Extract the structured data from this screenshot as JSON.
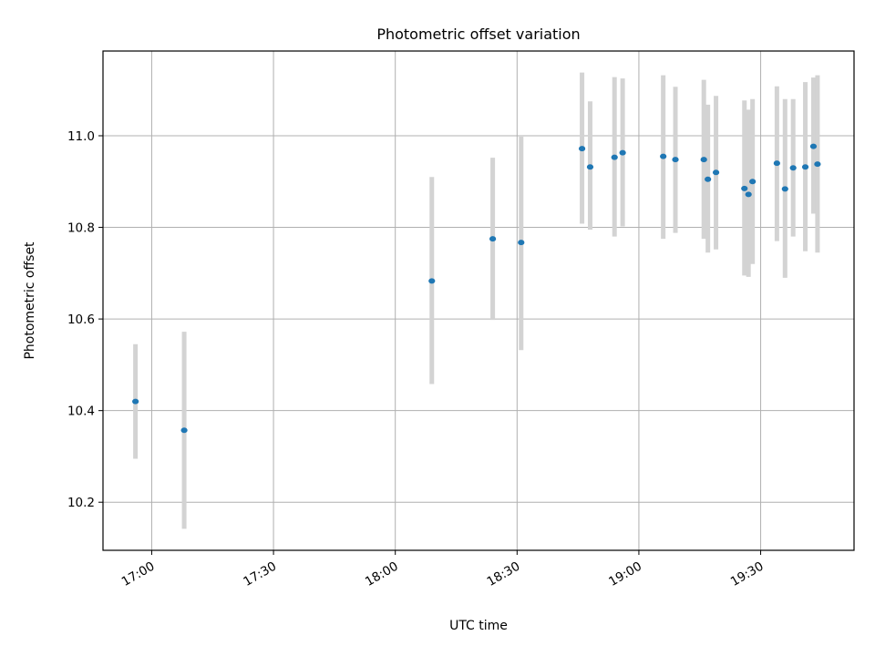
{
  "chart_data": {
    "type": "scatter",
    "title": "Photometric offset variation",
    "xlabel": "UTC time",
    "ylabel": "Photometric offset",
    "xlim": [
      "16:48",
      "19:53"
    ],
    "ylim": [
      10.095,
      11.185
    ],
    "xticks": [
      "17:00",
      "17:30",
      "18:00",
      "18:30",
      "19:00",
      "19:30"
    ],
    "yticks": [
      "10.2",
      "10.4",
      "10.6",
      "10.8",
      "11.0"
    ],
    "grid": true,
    "marker_color": "#1f77b4",
    "errorbar_color": "#d3d3d3",
    "points": [
      {
        "x": "16:56",
        "y": 10.42,
        "ylow": 10.295,
        "yhigh": 10.545
      },
      {
        "x": "17:08",
        "y": 10.357,
        "ylow": 10.142,
        "yhigh": 10.572
      },
      {
        "x": "18:09",
        "y": 10.683,
        "ylow": 10.458,
        "yhigh": 10.91
      },
      {
        "x": "18:24",
        "y": 10.775,
        "ylow": 10.598,
        "yhigh": 10.952
      },
      {
        "x": "18:31",
        "y": 10.767,
        "ylow": 10.532,
        "yhigh": 10.998
      },
      {
        "x": "18:46",
        "y": 10.972,
        "ylow": 10.808,
        "yhigh": 11.138
      },
      {
        "x": "18:48",
        "y": 10.932,
        "ylow": 10.795,
        "yhigh": 11.075
      },
      {
        "x": "18:54",
        "y": 10.953,
        "ylow": 10.78,
        "yhigh": 11.128
      },
      {
        "x": "18:56",
        "y": 10.963,
        "ylow": 10.802,
        "yhigh": 11.125
      },
      {
        "x": "19:06",
        "y": 10.955,
        "ylow": 10.775,
        "yhigh": 11.132
      },
      {
        "x": "19:09",
        "y": 10.948,
        "ylow": 10.788,
        "yhigh": 11.107
      },
      {
        "x": "19:16",
        "y": 10.948,
        "ylow": 10.775,
        "yhigh": 11.122
      },
      {
        "x": "19:17",
        "y": 10.905,
        "ylow": 10.745,
        "yhigh": 11.068
      },
      {
        "x": "19:19",
        "y": 10.92,
        "ylow": 10.752,
        "yhigh": 11.087
      },
      {
        "x": "19:26",
        "y": 10.885,
        "ylow": 10.695,
        "yhigh": 11.077
      },
      {
        "x": "19:27",
        "y": 10.872,
        "ylow": 10.692,
        "yhigh": 11.057
      },
      {
        "x": "19:28",
        "y": 10.9,
        "ylow": 10.72,
        "yhigh": 11.08
      },
      {
        "x": "19:34",
        "y": 10.94,
        "ylow": 10.77,
        "yhigh": 11.108
      },
      {
        "x": "19:36",
        "y": 10.884,
        "ylow": 10.69,
        "yhigh": 11.08
      },
      {
        "x": "19:38",
        "y": 10.93,
        "ylow": 10.78,
        "yhigh": 11.08
      },
      {
        "x": "19:41",
        "y": 10.932,
        "ylow": 10.748,
        "yhigh": 11.117
      },
      {
        "x": "19:43",
        "y": 10.977,
        "ylow": 10.83,
        "yhigh": 11.127
      },
      {
        "x": "19:44",
        "y": 10.938,
        "ylow": 10.745,
        "yhigh": 11.132
      }
    ]
  }
}
